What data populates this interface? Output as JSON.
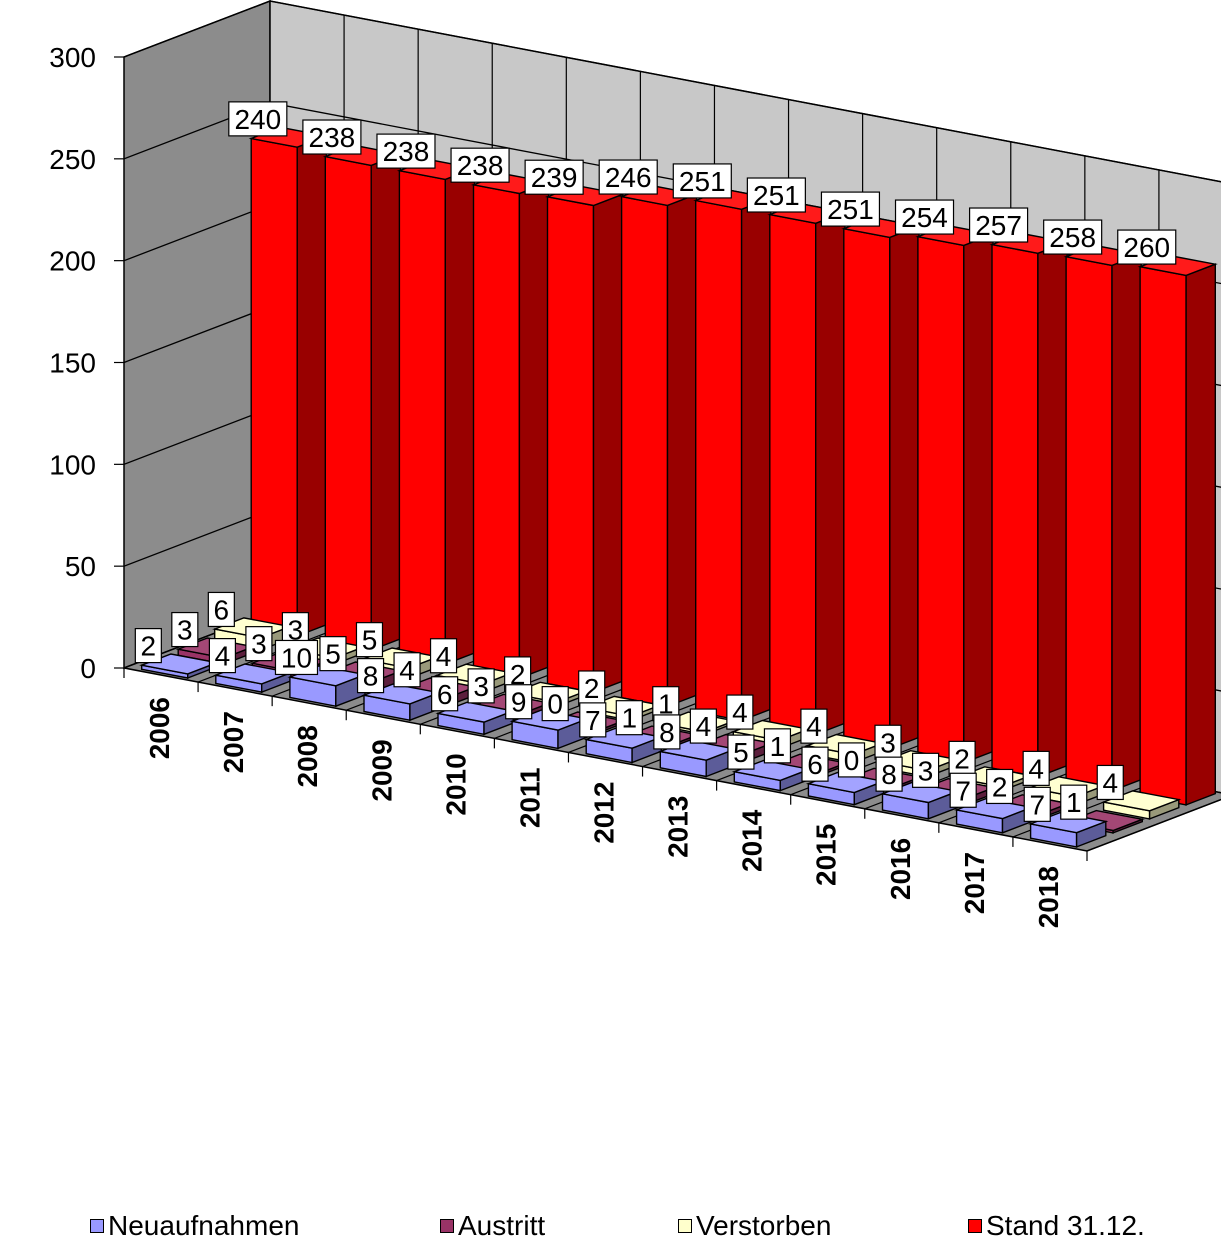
{
  "chart_data": {
    "type": "bar",
    "categories": [
      "2006",
      "2007",
      "2008",
      "2009",
      "2010",
      "2011",
      "2012",
      "2013",
      "2014",
      "2015",
      "2016",
      "2017",
      "2018"
    ],
    "series": [
      {
        "name": "Neuaufnahmen",
        "color": "#9999ff",
        "values": [
          2,
          4,
          10,
          8,
          6,
          9,
          7,
          8,
          5,
          6,
          8,
          7,
          7
        ]
      },
      {
        "name": "Austritt",
        "color": "#993366",
        "values": [
          3,
          3,
          5,
          4,
          3,
          0,
          1,
          4,
          1,
          0,
          3,
          2,
          1
        ]
      },
      {
        "name": "Verstorben",
        "color": "#ffffcc",
        "values": [
          6,
          3,
          5,
          4,
          2,
          2,
          1,
          4,
          4,
          3,
          2,
          4,
          4
        ]
      },
      {
        "name": "Stand 31.12.",
        "color": "#ff0000",
        "values": [
          240,
          238,
          238,
          238,
          239,
          246,
          251,
          251,
          251,
          254,
          257,
          258,
          260
        ]
      }
    ],
    "yaxis_ticks": [
      "0",
      "50",
      "100",
      "150",
      "200",
      "250",
      "300"
    ],
    "ylim": [
      0,
      300
    ],
    "grid": true,
    "legend_position": "bottom",
    "style": "3d-bar"
  }
}
